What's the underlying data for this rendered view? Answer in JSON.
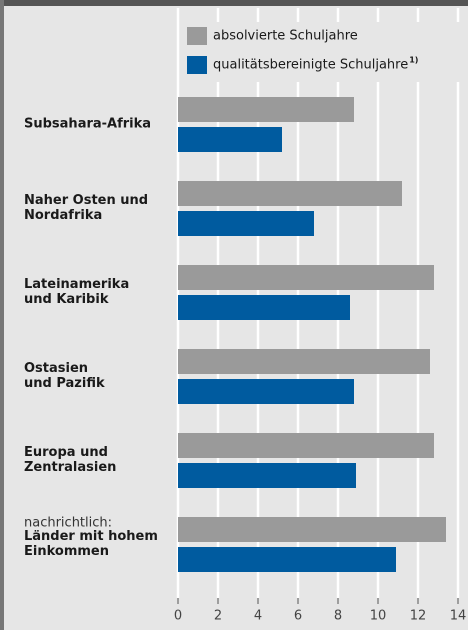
{
  "chart_data": {
    "type": "hbar",
    "categories": [
      [
        "Subsahara-Afrika"
      ],
      [
        "Naher Osten und",
        "Nordafrika"
      ],
      [
        "Lateinamerika",
        "und Karibik"
      ],
      [
        "Ostasien",
        "und Pazifik"
      ],
      [
        "Europa und",
        "Zentralasien"
      ],
      [
        "Länder mit hohem",
        "Einkommen"
      ]
    ],
    "annotation": "nachrichtlich:",
    "series": [
      {
        "name": "absolvierte Schuljahre",
        "color": "#9a9a9a",
        "values": [
          8.8,
          11.2,
          12.8,
          12.6,
          12.8,
          13.4
        ]
      },
      {
        "name": "qualitätsbereinigte Schuljahre",
        "note": "1)",
        "color": "#005b9f",
        "values": [
          5.2,
          6.8,
          8.6,
          8.8,
          8.9,
          10.9
        ]
      }
    ],
    "xlim": [
      0,
      14
    ],
    "xticks": [
      0,
      2,
      4,
      6,
      8,
      10,
      12,
      14
    ],
    "grid": true
  }
}
